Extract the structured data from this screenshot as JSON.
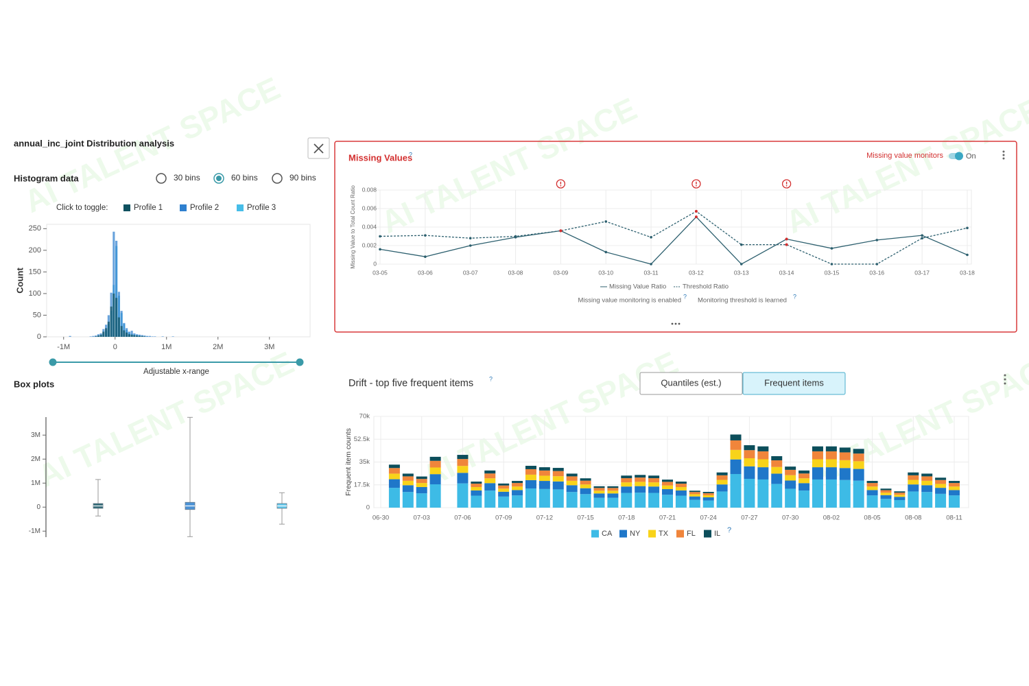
{
  "watermark": "AI TALENT SPACE",
  "help_mark": "?",
  "distribution_panel": {
    "title": "annual_inc_joint Distribution analysis",
    "histogram_heading": "Histogram data",
    "bin_options": [
      "30 bins",
      "60 bins",
      "90 bins"
    ],
    "selected_bin_option": 1,
    "toggle_label": "Click to toggle:",
    "range_label": "Adjustable x-range",
    "box_plots_heading": "Box plots"
  },
  "missing_values_panel": {
    "monitor_label": "Missing value monitors",
    "monitor_state": "On",
    "enabled_note": "Missing value monitoring is enabled",
    "threshold_note": "Monitoring threshold is learned"
  },
  "drift_panel": {
    "tabs": [
      "Quantiles (est.)",
      "Frequent items"
    ],
    "selected_tab": 1
  },
  "chart_data": [
    {
      "type": "histogram",
      "y_label": "Count",
      "bins": [
        -1000000,
        -950000,
        -900000,
        -850000,
        -800000,
        -750000,
        -700000,
        -650000,
        -600000,
        -550000,
        -500000,
        -450000,
        -400000,
        -350000,
        -300000,
        -250000,
        -200000,
        -150000,
        -100000,
        -50000,
        0,
        50000,
        100000,
        150000,
        200000,
        250000,
        300000,
        350000,
        400000,
        450000,
        500000,
        550000,
        600000,
        650000,
        700000,
        750000,
        800000,
        850000,
        900000,
        950000,
        1000000,
        1050000,
        1100000,
        1150000,
        1200000,
        1250000,
        1300000,
        1350000,
        1400000,
        1450000,
        1500000,
        1550000,
        1600000,
        1650000,
        1700000,
        1750000,
        1800000,
        1850000,
        1900000,
        1950000,
        2000000
      ],
      "series": [
        {
          "name": "Profile 1",
          "color": "#0e5160",
          "values": [
            0,
            0,
            0,
            0,
            0,
            0,
            0,
            0,
            0,
            0,
            0,
            0,
            1,
            3,
            5,
            12,
            20,
            35,
            70,
            100,
            90,
            45,
            25,
            15,
            10,
            6,
            5,
            4,
            3,
            2,
            2,
            1,
            0,
            0,
            0,
            0,
            0,
            0,
            0,
            0,
            0,
            0,
            0,
            0,
            0,
            0,
            0,
            0,
            0,
            0,
            0,
            0,
            0,
            0,
            0,
            0,
            0,
            0,
            0,
            0
          ]
        },
        {
          "name": "Profile 2",
          "color": "#2f80cf",
          "values": [
            0,
            0,
            2,
            0,
            0,
            0,
            0,
            0,
            0,
            0,
            1,
            2,
            3,
            6,
            8,
            18,
            28,
            50,
            102,
            243,
            222,
            104,
            60,
            32,
            20,
            12,
            14,
            8,
            6,
            5,
            4,
            3,
            2,
            2,
            1,
            1,
            0,
            0,
            1,
            0,
            0,
            0,
            1,
            0,
            0,
            0,
            0,
            0,
            0,
            0,
            0,
            0,
            0,
            0,
            0,
            0,
            0,
            0,
            0,
            0
          ]
        },
        {
          "name": "Profile 3",
          "color": "#46bde8",
          "values": [
            0,
            0,
            0,
            0,
            0,
            0,
            0,
            0,
            0,
            0,
            0,
            0,
            0,
            2,
            4,
            8,
            14,
            30,
            60,
            120,
            210,
            95,
            55,
            30,
            16,
            10,
            7,
            5,
            4,
            3,
            2,
            1,
            1,
            0,
            0,
            0,
            0,
            0,
            0,
            0,
            0,
            0,
            0,
            0,
            0,
            0,
            0,
            0,
            0,
            0,
            0,
            0,
            0,
            0,
            0,
            0,
            0,
            0,
            0,
            0
          ]
        }
      ],
      "xlim": [
        -1330000,
        3790000
      ],
      "xticks": [
        {
          "value": -1000000,
          "label": "-1M"
        },
        0,
        {
          "value": 1000000,
          "label": "1M"
        },
        {
          "value": 2000000,
          "label": "2M"
        },
        {
          "value": 3000000,
          "label": "3M"
        }
      ],
      "ylim": [
        0,
        260
      ],
      "yticks": [
        0,
        50,
        100,
        150,
        200,
        250
      ]
    },
    {
      "type": "box",
      "series": [
        {
          "color": "#0e5160",
          "min": -370000,
          "q1": -50000,
          "median": 50000,
          "q3": 150000,
          "max": 1150000
        },
        {
          "color": "#2f80cf",
          "min": -1230000,
          "q1": -100000,
          "median": 50000,
          "q3": 200000,
          "max": 3740000
        },
        {
          "color": "#46bde8",
          "min": -710000,
          "q1": -50000,
          "median": 50000,
          "q3": 150000,
          "max": 600000
        }
      ],
      "ylim": [
        -1250000,
        3750000
      ],
      "yticks": [
        {
          "value": 3000000,
          "label": "3M"
        },
        {
          "value": 2000000,
          "label": "2M"
        },
        {
          "value": 1000000,
          "label": "1M"
        },
        0,
        {
          "value": -1000000,
          "label": "-1M"
        }
      ]
    },
    {
      "type": "line",
      "title": "Missing Values",
      "y_label": "Missing Value to Total Count Ratio",
      "categories": [
        "03-05",
        "03-06",
        "03-07",
        "03-08",
        "03-09",
        "03-10",
        "03-11",
        "03-12",
        "03-13",
        "03-14",
        "03-15",
        "03-16",
        "03-17",
        "03-18"
      ],
      "series": [
        {
          "name": "Missing Value Ratio",
          "color": "#2c5f6e",
          "dashed": false,
          "values": [
            0.0016,
            0.0008,
            0.002,
            0.0029,
            0.0036,
            0.0013,
            0,
            0.0051,
            0,
            0.0027,
            0.0017,
            0.0026,
            0.0031,
            0.001
          ]
        },
        {
          "name": "Threshold Ratio",
          "color": "#2c5f6e",
          "dashed": true,
          "values": [
            0.003,
            0.0031,
            0.0028,
            0.003,
            0.0036,
            0.0046,
            0.0029,
            0.0057,
            0.0021,
            0.0021,
            0,
            0,
            0.0028,
            0.0039
          ]
        }
      ],
      "anomalies": [
        4,
        7,
        9
      ],
      "anomaly_color": "#d32f2f",
      "ylim": [
        0,
        0.008
      ],
      "yticks": [
        0,
        0.002,
        0.004,
        0.006,
        0.008
      ],
      "grid": true
    },
    {
      "type": "bar",
      "stacked": true,
      "title": "Drift - top five frequent items",
      "y_label": "Frequent item counts",
      "categories": [
        "06-30",
        null,
        null,
        "07-03",
        null,
        null,
        "07-06",
        null,
        null,
        "07-09",
        null,
        null,
        "07-12",
        null,
        null,
        "07-15",
        null,
        null,
        "07-18",
        null,
        null,
        "07-21",
        null,
        null,
        "07-24",
        null,
        null,
        "07-27",
        null,
        null,
        "07-30",
        null,
        null,
        "08-02",
        null,
        null,
        "08-05",
        null,
        null,
        "08-08",
        null,
        null,
        "08-11"
      ],
      "series": [
        {
          "name": "CA",
          "color": "#3dbbe6",
          "values": [
            null,
            15200,
            12000,
            11000,
            17900,
            null,
            18600,
            9200,
            13100,
            8500,
            9400,
            14700,
            14300,
            14000,
            12000,
            10400,
            7600,
            7600,
            11300,
            11500,
            11300,
            9900,
            9200,
            6000,
            5500,
            12400,
            25800,
            22100,
            21600,
            18200,
            14500,
            13100,
            21600,
            21600,
            21200,
            20700,
            9400,
            6700,
            5800,
            12400,
            12000,
            10600,
            9400
          ]
        },
        {
          "name": "NY",
          "color": "#1f77c9",
          "values": [
            null,
            6600,
            5200,
            4800,
            7800,
            null,
            8100,
            4000,
            5700,
            3700,
            4100,
            6400,
            6200,
            6100,
            5200,
            4500,
            3300,
            3300,
            4900,
            5000,
            4900,
            4300,
            4000,
            2600,
            2400,
            5400,
            11200,
            9600,
            9400,
            7900,
            6300,
            5700,
            9400,
            9400,
            9200,
            9000,
            4100,
            2900,
            2500,
            5400,
            5200,
            4600,
            4100
          ]
        },
        {
          "name": "TX",
          "color": "#f8d31a",
          "values": [
            null,
            4300,
            3400,
            3100,
            5100,
            null,
            5300,
            2600,
            3700,
            2400,
            2700,
            4200,
            4000,
            4000,
            3400,
            2900,
            2100,
            2100,
            3200,
            3300,
            3200,
            2800,
            2600,
            1700,
            1600,
            3500,
            7300,
            6200,
            6100,
            5100,
            4100,
            3700,
            6100,
            6100,
            6000,
            5900,
            2700,
            1900,
            1600,
            3500,
            3400,
            3000,
            2700
          ]
        },
        {
          "name": "FL",
          "color": "#f0853b",
          "values": [
            null,
            4300,
            3400,
            3100,
            5100,
            null,
            5300,
            2600,
            3700,
            2400,
            2700,
            4200,
            4000,
            4000,
            3400,
            2900,
            2100,
            2100,
            3200,
            3300,
            3200,
            2800,
            2600,
            1700,
            1600,
            3500,
            7300,
            6200,
            6100,
            5100,
            4100,
            3700,
            6100,
            6100,
            6000,
            5900,
            2700,
            1900,
            1600,
            3500,
            3400,
            3000,
            2700
          ]
        },
        {
          "name": "IL",
          "color": "#0c4e5b",
          "values": [
            null,
            2600,
            2100,
            1900,
            3100,
            null,
            3200,
            1600,
            2300,
            1500,
            1600,
            2600,
            2500,
            2400,
            2100,
            1800,
            1300,
            1300,
            2000,
            2000,
            2000,
            1700,
            1600,
            1000,
            1000,
            2200,
            4500,
            3800,
            3800,
            3200,
            2500,
            2300,
            3800,
            3800,
            3700,
            3600,
            1600,
            1200,
            1000,
            2200,
            2100,
            1800,
            1600
          ]
        }
      ],
      "ylim": [
        0,
        70000
      ],
      "yticks": [
        0,
        {
          "value": 17500,
          "label": "17.5k"
        },
        {
          "value": 35000,
          "label": "35k"
        },
        {
          "value": 52500,
          "label": "52.5k"
        },
        {
          "value": 70000,
          "label": "70k"
        }
      ],
      "grid": true
    }
  ]
}
